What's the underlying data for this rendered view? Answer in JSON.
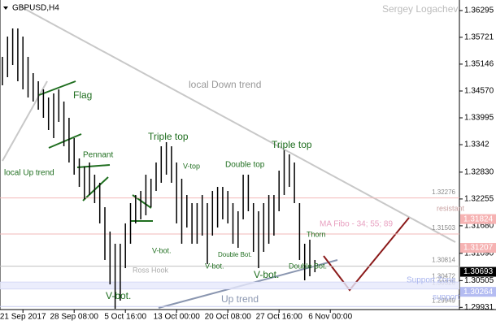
{
  "chart_data": {
    "type": "ohlc",
    "title": "GBPUSD,H4",
    "author": "Sergey Logachev",
    "categories": [
      null,
      null,
      null,
      null,
      "21 Sep 2017",
      null,
      null,
      null,
      null,
      null,
      null,
      null,
      null,
      null,
      "28 Sep 08:00",
      null,
      null,
      null,
      null,
      null,
      null,
      null,
      null,
      null,
      "5 Oct 16:00",
      null,
      null,
      null,
      null,
      null,
      null,
      null,
      null,
      null,
      "13 Oct 00:00",
      null,
      null,
      null,
      null,
      null,
      null,
      null,
      null,
      null,
      "20 Oct 08:00",
      null,
      null,
      null,
      null,
      null,
      null,
      null,
      null,
      null,
      "27 Oct 16:00",
      null,
      null,
      null,
      null,
      null,
      null,
      null,
      null,
      null,
      "6 Nov 00:00",
      null
    ],
    "high": [
      1.35302,
      1.35737,
      1.35911,
      1.35911,
      1.35737,
      1.35302,
      1.34953,
      1.34779,
      1.34605,
      1.34431,
      1.34518,
      1.34605,
      1.34344,
      1.33995,
      1.3356,
      1.33124,
      1.3295,
      1.33037,
      1.32776,
      1.32602,
      1.32079,
      1.31556,
      1.31295,
      1.31295,
      1.31731,
      1.32166,
      1.3234,
      1.32427,
      1.32776,
      1.32689,
      1.33037,
      1.33385,
      1.33473,
      1.33385,
      1.33037,
      1.32689,
      1.3234,
      1.32166,
      1.32166,
      1.3234,
      1.32166,
      1.32427,
      1.32514,
      1.32514,
      1.32427,
      1.32166,
      1.31992,
      1.32776,
      1.32776,
      1.32166,
      1.31992,
      1.32166,
      1.3234,
      1.3234,
      1.32863,
      1.33298,
      1.33211,
      1.33037,
      1.32166,
      1.31295,
      1.31382,
      1.30947,
      null,
      null,
      null,
      null
    ],
    "low": [
      1.34692,
      1.34866,
      1.35127,
      1.34779,
      1.34605,
      1.34431,
      1.34344,
      1.34169,
      1.33995,
      1.33734,
      1.3356,
      1.33908,
      1.33385,
      1.33037,
      1.32776,
      1.32514,
      1.32253,
      1.3234,
      1.32166,
      1.31731,
      1.30947,
      1.30424,
      1.29901,
      1.30076,
      1.30772,
      1.31295,
      1.31731,
      1.31818,
      1.31905,
      1.32079,
      1.32427,
      1.32602,
      1.32776,
      1.32602,
      1.31731,
      1.31295,
      1.31643,
      1.31295,
      1.31295,
      1.31469,
      1.3086,
      1.31469,
      1.31643,
      1.31818,
      1.31731,
      1.31295,
      1.31208,
      1.31818,
      1.31992,
      1.31121,
      1.30772,
      1.31121,
      1.31295,
      1.31469,
      1.31992,
      1.3234,
      1.32514,
      1.32166,
      1.30947,
      1.30511,
      1.30598,
      1.30685,
      null,
      null,
      null,
      null
    ],
    "color": "#000000",
    "ylim": [
      1.29884,
      1.36521
    ],
    "yticks": [
      1.36295,
      1.35721,
      1.35146,
      {
        "value": 1.3457,
        "label": "1.34570"
      },
      1.33995,
      1.3342,
      {
        "value": 1.3283,
        "label": "1.32830"
      },
      1.32255,
      {
        "value": 1.3168,
        "label": "1.31680"
      },
      {
        "value": 1.3109,
        "label": "1.31090"
      },
      1.30505,
      1.29931
    ],
    "levels": [
      {
        "value": 1.32276,
        "color": "#f2b8b8"
      },
      {
        "value": 1.31503,
        "color": "#f2b8b8"
      },
      {
        "value": 1.30814,
        "color": "#c0c0c0"
      },
      {
        "value": 1.30472,
        "color": "#c8ccf0"
      },
      {
        "value": 1.30326,
        "color": "#c8ccf0"
      },
      {
        "value": 1.29949,
        "color": "#c8ccf0"
      }
    ],
    "tags": [
      {
        "value": 1.31824,
        "color": "#f6b3b3"
      },
      {
        "value": 1.31207,
        "color": "#f6b3b3"
      },
      {
        "value": 1.30693,
        "color": "#000000"
      },
      {
        "value": 1.30264,
        "color": "#b4bcf2"
      }
    ],
    "annotations": [
      "local Down trend",
      "Flag",
      "Pennant",
      "Triple top",
      "V-top",
      "Double top",
      "Triple top",
      "local  Up trend",
      "V-bot.",
      "Double Bot.",
      "V-bot.",
      "Ross Hook",
      "V-bot.",
      "V-bot.",
      "Double Bot.",
      "Thorn",
      "Up trend",
      "resistant",
      "MA Fibo - 34; 55; 89",
      "Support Zone",
      "support"
    ]
  }
}
